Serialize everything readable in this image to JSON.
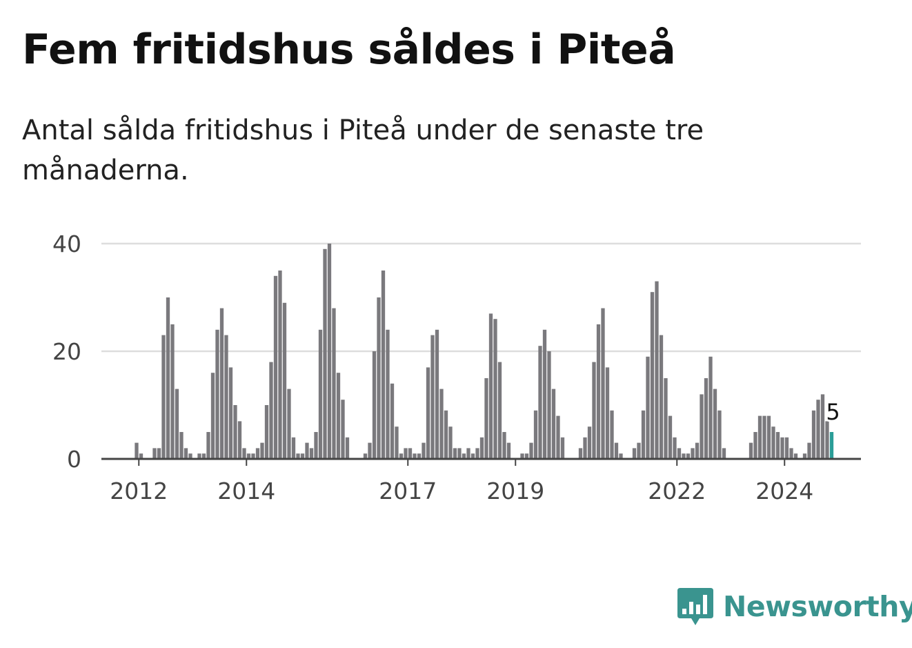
{
  "title": "Fem fritidshus såldes i Piteå",
  "subtitle": "Antal sålda fritidshus i Piteå under de senaste tre månaderna.",
  "brand": {
    "name": "Newsworthy",
    "icon": "newsworthy-logo-icon",
    "color": "#3a948f"
  },
  "chart_data": {
    "type": "bar",
    "ylim": [
      0,
      40
    ],
    "yticks": [
      0,
      20,
      40
    ],
    "xticks": [
      {
        "label": "2012",
        "index": 0
      },
      {
        "label": "2014",
        "index": 24
      },
      {
        "label": "2017",
        "index": 60
      },
      {
        "label": "2019",
        "index": 84
      },
      {
        "label": "2022",
        "index": 120
      },
      {
        "label": "2024",
        "index": 144
      }
    ],
    "series": [
      {
        "start": "2012-01",
        "values": [
          3,
          1,
          0,
          0,
          2,
          2,
          23,
          30,
          25,
          13,
          5,
          2,
          1,
          0,
          1,
          1,
          5,
          16,
          24,
          28,
          23,
          17,
          10,
          7,
          2,
          1,
          1,
          2,
          3,
          10,
          18,
          34,
          35,
          29,
          13,
          4,
          1,
          1,
          3,
          2,
          5,
          24,
          39,
          40,
          28,
          16,
          11,
          4,
          0,
          0,
          0,
          1,
          3,
          20,
          30,
          35,
          24,
          14,
          6,
          1,
          2,
          2,
          1,
          1,
          3,
          17,
          23,
          24,
          13,
          9,
          6,
          2,
          2,
          1,
          2,
          1,
          2,
          4,
          15,
          27,
          26,
          18,
          5,
          3,
          0,
          0,
          1,
          1,
          3,
          9,
          21,
          24,
          20,
          13,
          8,
          4,
          0,
          0,
          0,
          2,
          4,
          6,
          18,
          25,
          28,
          17,
          9,
          3,
          1,
          0,
          0,
          2,
          3,
          9,
          19,
          31,
          33,
          23,
          15,
          8,
          4,
          2,
          1,
          1,
          2,
          3,
          12,
          15,
          19,
          13,
          9,
          2,
          0,
          0,
          0,
          0,
          0,
          3,
          5,
          8,
          8,
          8,
          6,
          5,
          4,
          4,
          2,
          1,
          0,
          1,
          3,
          9,
          11,
          12,
          7,
          5
        ]
      }
    ],
    "highlight": {
      "index": 155,
      "label": "5"
    },
    "colors": {
      "bar": "#7a797d",
      "highlight": "#2a9d97",
      "grid": "#dddddd",
      "axis": "#444444",
      "tick_text": "#444444"
    }
  }
}
